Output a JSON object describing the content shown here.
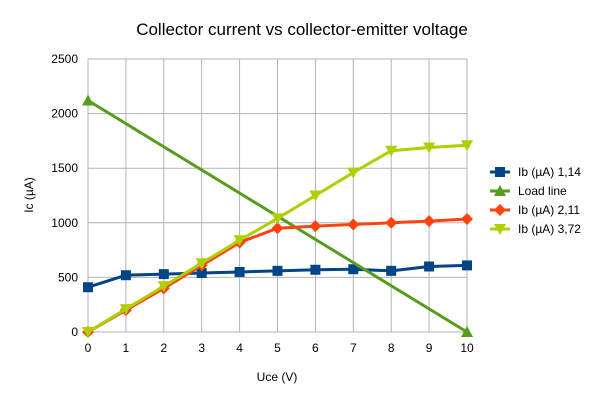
{
  "chart_data": {
    "type": "line",
    "title": "Collector current vs collector-emitter voltage",
    "xlabel": "Uce (V)",
    "ylabel": "Ic (µA)",
    "xlim": [
      0,
      10
    ],
    "ylim": [
      0,
      2500
    ],
    "x_ticks": [
      0,
      1,
      2,
      3,
      4,
      5,
      6,
      7,
      8,
      9,
      10
    ],
    "y_ticks": [
      0,
      500,
      1000,
      1500,
      2000,
      2500
    ],
    "grid": true,
    "legend_position": "right",
    "series": [
      {
        "name": "Ib (µA) 1,14",
        "color": "#004586",
        "marker": "square",
        "x": [
          0,
          1,
          2,
          3,
          4,
          5,
          6,
          7,
          8,
          9,
          10
        ],
        "y": [
          410,
          520,
          530,
          540,
          550,
          560,
          570,
          575,
          560,
          600,
          610
        ]
      },
      {
        "name": "Load line",
        "color": "#579d1c",
        "marker": "triangle-up",
        "x": [
          0,
          10
        ],
        "y": [
          2120,
          0
        ]
      },
      {
        "name": "Ib (µA) 2,11",
        "color": "#ff420e",
        "marker": "diamond",
        "x": [
          0,
          1,
          2,
          3,
          4,
          5,
          6,
          7,
          8,
          9,
          10
        ],
        "y": [
          0,
          200,
          400,
          610,
          820,
          950,
          970,
          985,
          1000,
          1015,
          1035
        ]
      },
      {
        "name": "Ib (µA) 3,72",
        "color": "#aecf00",
        "marker": "triangle-down",
        "x": [
          0,
          1,
          2,
          3,
          4,
          5,
          6,
          7,
          8,
          9,
          10
        ],
        "y": [
          0,
          210,
          420,
          630,
          840,
          1040,
          1250,
          1460,
          1660,
          1690,
          1710
        ]
      }
    ]
  }
}
